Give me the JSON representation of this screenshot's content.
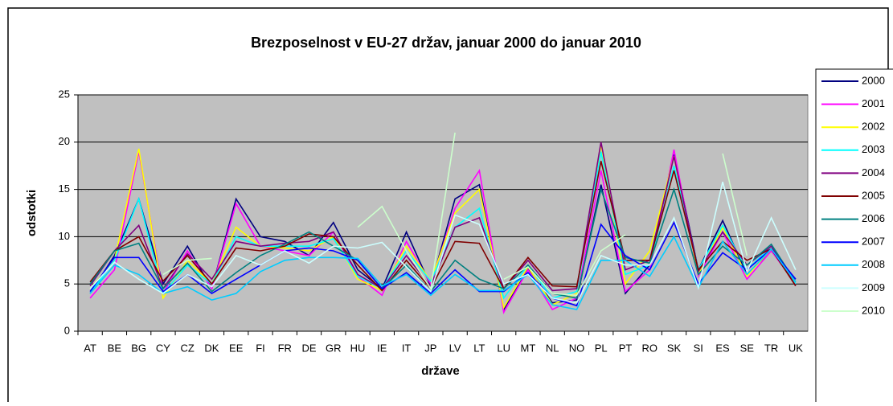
{
  "chart_data": {
    "type": "line",
    "title": "Brezposelnost v EU-27 držav, januar 2000 do januar 2010",
    "x_label": "države",
    "y_label": "odstotki",
    "categories": [
      "AT",
      "BE",
      "BG",
      "CY",
      "CZ",
      "DK",
      "EE",
      "FI",
      "FR",
      "DE",
      "GR",
      "HU",
      "IE",
      "IT",
      "JP",
      "LV",
      "LT",
      "LU",
      "MT",
      "NL",
      "NO",
      "PL",
      "PT",
      "RO",
      "SK",
      "SI",
      "ES",
      "SE",
      "TR",
      "UK"
    ],
    "ylim": [
      0,
      25
    ],
    "yticks": [
      0,
      5,
      10,
      15,
      20,
      25
    ],
    "grid": true,
    "legend": "right",
    "series": [
      {
        "name": "2000",
        "color": "#000080",
        "values": [
          4,
          8,
          14,
          5,
          9,
          4.5,
          14,
          10,
          9.5,
          8,
          11.5,
          6.5,
          4.5,
          10.5,
          4.8,
          14,
          15.5,
          2.3,
          6.7,
          3,
          3.3,
          15.5,
          4,
          7,
          18.7,
          6.5,
          11.7,
          6,
          8.5,
          5.5
        ]
      },
      {
        "name": "2001",
        "color": "#ff00ff",
        "values": [
          3.5,
          6.5,
          19,
          4,
          8.5,
          4.5,
          13.5,
          9,
          8.5,
          8,
          10.5,
          5.8,
          3.8,
          9.5,
          5,
          13,
          17,
          2,
          6.5,
          2.3,
          3.5,
          17,
          4.2,
          6.5,
          19.2,
          5.8,
          10.5,
          5.5,
          8.5,
          5
        ]
      },
      {
        "name": "2002",
        "color": "#ffff00",
        "values": [
          4.5,
          7.5,
          19.3,
          3.5,
          7.5,
          5,
          11,
          9,
          8.8,
          8.5,
          10,
          5.5,
          4.3,
          9,
          5.3,
          12.5,
          15,
          2.5,
          6.8,
          2.8,
          4,
          19.8,
          5,
          8.5,
          18.5,
          6,
          11,
          5.8,
          8.7,
          5.2
        ]
      },
      {
        "name": "2003",
        "color": "#00ffff",
        "values": [
          4,
          7.5,
          14,
          4,
          7,
          5,
          10,
          9,
          9,
          9,
          9.8,
          5.8,
          4.5,
          8.5,
          5.3,
          11,
          13,
          3.5,
          7,
          3.5,
          4.2,
          19,
          6,
          7,
          17.5,
          6.5,
          11.2,
          6.5,
          9,
          5
        ]
      },
      {
        "name": "2004",
        "color": "#800080",
        "values": [
          4.8,
          8.5,
          11.2,
          4.5,
          8.2,
          5.5,
          9.5,
          9,
          9.3,
          9.5,
          10.5,
          6,
          4.5,
          8,
          4.7,
          11,
          12,
          4.5,
          7.5,
          4.3,
          4.5,
          20,
          6.5,
          7.5,
          18.5,
          6.3,
          10.5,
          7,
          9,
          4.8
        ]
      },
      {
        "name": "2005",
        "color": "#800000",
        "values": [
          5.2,
          8.5,
          10,
          5.3,
          8,
          5,
          8.8,
          8.5,
          9,
          10.3,
          10,
          7,
          4.3,
          7.5,
          4.5,
          9.5,
          9.3,
          4.5,
          7.8,
          4.8,
          4.7,
          18,
          7.5,
          7.5,
          17,
          6.5,
          9.5,
          7.5,
          8.7,
          4.8
        ]
      },
      {
        "name": "2006",
        "color": "#008080",
        "values": [
          5,
          8.5,
          9.3,
          4.5,
          7.2,
          4.2,
          6.2,
          8,
          9.2,
          10.5,
          9,
          7.5,
          4.5,
          7,
          4.2,
          7.5,
          5.5,
          4.5,
          7,
          4,
          3.5,
          15,
          7.8,
          7.2,
          15,
          6,
          9,
          7,
          9.2,
          5.2
        ]
      },
      {
        "name": "2007",
        "color": "#0000ff",
        "values": [
          4.2,
          7.8,
          7.8,
          4.2,
          6,
          4,
          5.5,
          7,
          8.5,
          8.8,
          8.5,
          7.5,
          4.5,
          6.2,
          4,
          6.5,
          4.2,
          4.2,
          6.2,
          3.5,
          2.7,
          11.3,
          8,
          6.5,
          11.5,
          5,
          8.3,
          6.5,
          8.7,
          5.5
        ]
      },
      {
        "name": "2008",
        "color": "#00ccff",
        "values": [
          4,
          7,
          6,
          4,
          4.7,
          3.3,
          4,
          6.3,
          7.5,
          7.8,
          7.8,
          7.7,
          4.8,
          6,
          3.8,
          6,
          4.3,
          4.3,
          6,
          2.8,
          2.3,
          7.5,
          7.5,
          5.8,
          10,
          4.6,
          9.5,
          6,
          8.7,
          5.2
        ]
      },
      {
        "name": "2009",
        "color": "#ccffff",
        "values": [
          4.5,
          7.3,
          5.5,
          4,
          6,
          4.7,
          8,
          7,
          8.5,
          7.2,
          9,
          8.8,
          9.4,
          6.8,
          4.2,
          12.3,
          11.3,
          5,
          6,
          3.5,
          3,
          8,
          7,
          7,
          12,
          4.6,
          15.8,
          6.3,
          12,
          6.5
        ]
      },
      {
        "name": "2010",
        "color": "#ccffcc",
        "values": [
          null,
          null,
          null,
          6,
          7.5,
          7.7,
          null,
          null,
          null,
          null,
          null,
          11,
          13.2,
          8.5,
          4.5,
          21,
          null,
          5.5,
          6.8,
          4,
          3.8,
          8.5,
          10.2,
          null,
          null,
          null,
          18.8,
          8,
          null,
          null
        ]
      }
    ]
  }
}
